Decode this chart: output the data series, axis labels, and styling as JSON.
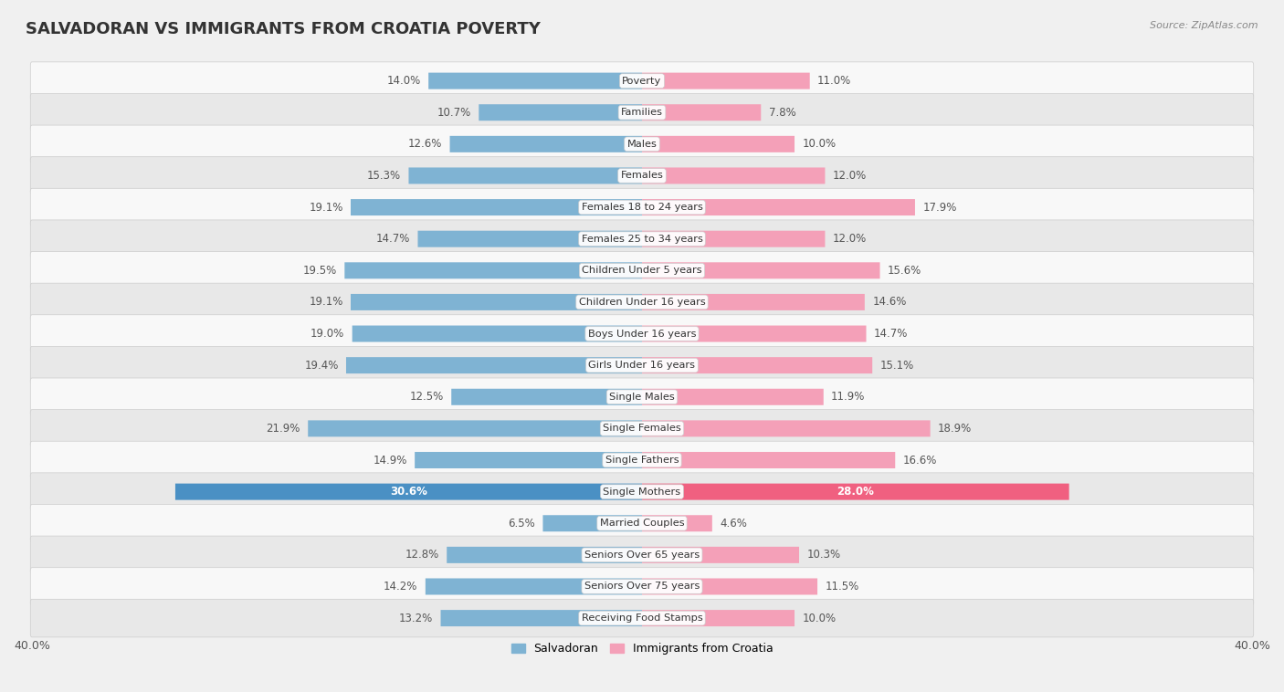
{
  "title": "SALVADORAN VS IMMIGRANTS FROM CROATIA POVERTY",
  "source": "Source: ZipAtlas.com",
  "categories": [
    "Poverty",
    "Families",
    "Males",
    "Females",
    "Females 18 to 24 years",
    "Females 25 to 34 years",
    "Children Under 5 years",
    "Children Under 16 years",
    "Boys Under 16 years",
    "Girls Under 16 years",
    "Single Males",
    "Single Females",
    "Single Fathers",
    "Single Mothers",
    "Married Couples",
    "Seniors Over 65 years",
    "Seniors Over 75 years",
    "Receiving Food Stamps"
  ],
  "salvadoran": [
    14.0,
    10.7,
    12.6,
    15.3,
    19.1,
    14.7,
    19.5,
    19.1,
    19.0,
    19.4,
    12.5,
    21.9,
    14.9,
    30.6,
    6.5,
    12.8,
    14.2,
    13.2
  ],
  "croatia": [
    11.0,
    7.8,
    10.0,
    12.0,
    17.9,
    12.0,
    15.6,
    14.6,
    14.7,
    15.1,
    11.9,
    18.9,
    16.6,
    28.0,
    4.6,
    10.3,
    11.5,
    10.0
  ],
  "salvadoran_color": "#7fb3d3",
  "croatia_color": "#f4a0b8",
  "salvadoran_highlight_color": "#4a90c4",
  "croatia_highlight_color": "#f06080",
  "background_color": "#f0f0f0",
  "row_even_color": "#f8f8f8",
  "row_odd_color": "#e8e8e8",
  "axis_limit": 40.0,
  "label_color": "#555555",
  "legend_salvadoran": "Salvadoran",
  "legend_croatia": "Immigrants from Croatia",
  "bar_height": 0.52
}
